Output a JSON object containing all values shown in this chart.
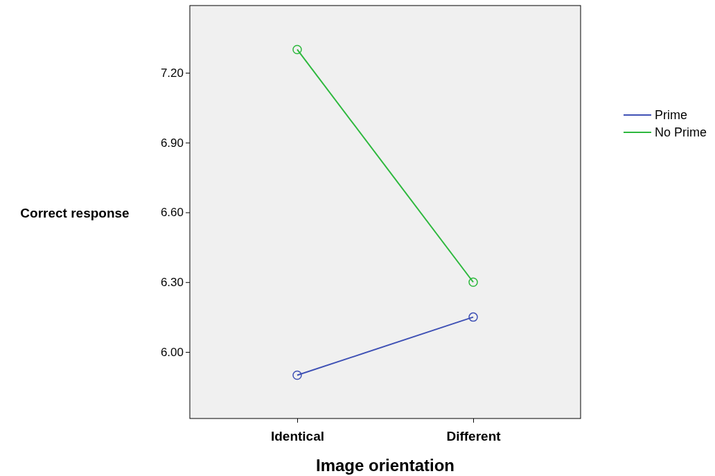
{
  "chart_data": {
    "type": "line",
    "xlabel": "Image orientation",
    "ylabel": "Correct response",
    "categories": [
      "Identical",
      "Different"
    ],
    "series": [
      {
        "name": "Prime",
        "color": "#3f51b5",
        "values": [
          5.9,
          6.15
        ]
      },
      {
        "name": "No Prime",
        "color": "#2db83d",
        "values": [
          7.3,
          6.3
        ]
      }
    ],
    "ylim": [
      5.714,
      7.489
    ],
    "yticks": [
      {
        "value": 6,
        "label": "6.00"
      },
      {
        "value": 6.3,
        "label": "6.30"
      },
      {
        "value": 6.6,
        "label": "6.60"
      },
      {
        "value": 6.9,
        "label": "6.90"
      },
      {
        "value": 7.2,
        "label": "7.20"
      }
    ],
    "marker": "circle",
    "legend": "right",
    "grid": false
  }
}
